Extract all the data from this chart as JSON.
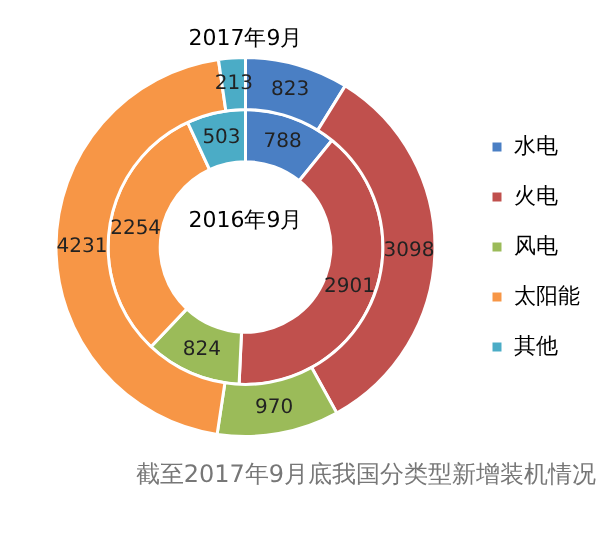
{
  "chart_data": {
    "type": "donut",
    "categories": [
      "水电",
      "火电",
      "风电",
      "太阳能",
      "其他"
    ],
    "colors": [
      "#4a7fc4",
      "#c0504d",
      "#9bbb59",
      "#f79646",
      "#4bacc6"
    ],
    "series": [
      {
        "name": "2017年9月",
        "values": [
          823,
          3098,
          970,
          4231,
          213
        ]
      },
      {
        "name": "2016年9月",
        "values": [
          788,
          2901,
          824,
          2254,
          503
        ]
      }
    ],
    "data_labels": true,
    "legend": "right",
    "annotations": [
      "截至2017年9月底我国分类型新增装机情况"
    ]
  }
}
